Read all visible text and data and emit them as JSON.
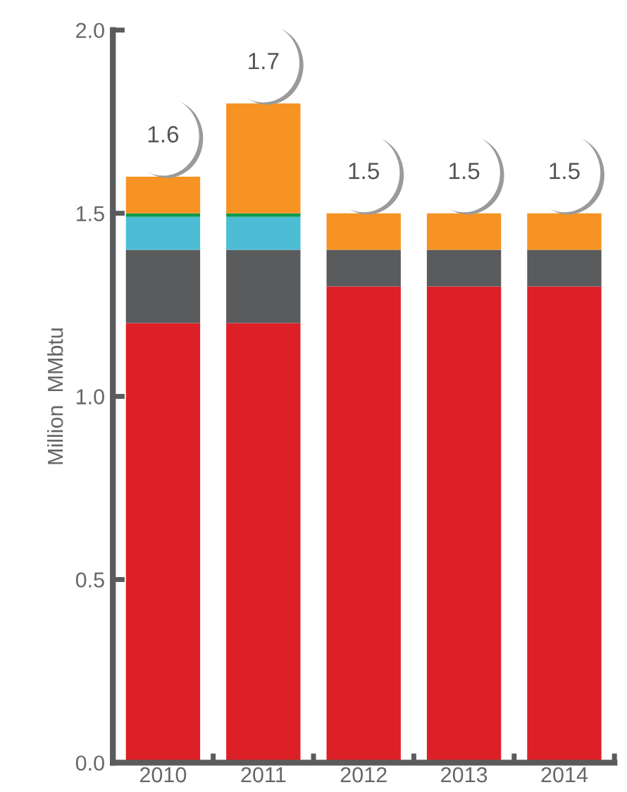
{
  "chart_data": {
    "type": "bar",
    "ylabel": "Million  MMbtu",
    "stacked": true,
    "categories": [
      "2010",
      "2011",
      "2012",
      "2013",
      "2014"
    ],
    "series": [
      {
        "color": "#dd2027",
        "values": [
          1.2,
          1.2,
          1.3,
          1.3,
          1.3
        ]
      },
      {
        "color": "#5a5b5d",
        "values": [
          0.2,
          0.2,
          0.1,
          0.1,
          0.1
        ]
      },
      {
        "color": "#4dbdd5",
        "values": [
          0.09,
          0.09,
          0,
          0,
          0
        ]
      },
      {
        "color": "#0f9a4c",
        "values": [
          0.01,
          0.01,
          0,
          0,
          0
        ]
      },
      {
        "color": "#f69322",
        "values": [
          0.1,
          0.3,
          0.1,
          0.1,
          0.1
        ]
      }
    ],
    "totals": [
      "1.6",
      "1.7",
      "1.5",
      "1.5",
      "1.5"
    ],
    "ylim": [
      0,
      2.0
    ],
    "yticks": [
      {
        "value": 0,
        "label": "0.0"
      },
      {
        "value": 0.5,
        "label": "0.5"
      },
      {
        "value": 1.0,
        "label": "1.0"
      },
      {
        "value": 1.5,
        "label": "1.5"
      },
      {
        "value": 2.0,
        "label": "2.0"
      }
    ],
    "grid": false,
    "legend": false
  }
}
